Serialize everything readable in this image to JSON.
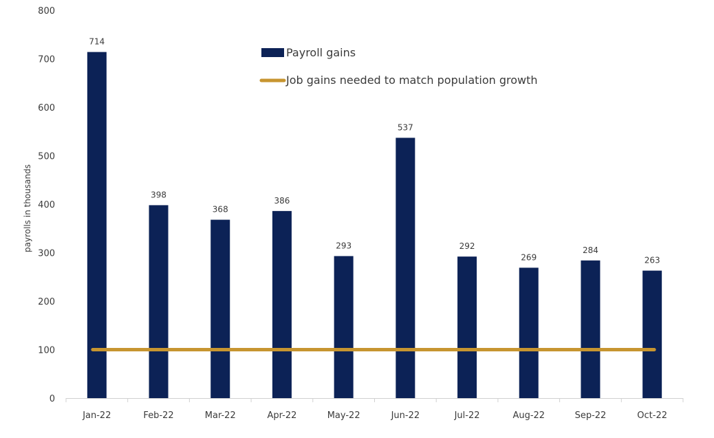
{
  "chart_data": {
    "type": "bar",
    "title": "",
    "xlabel": "",
    "ylabel": "payrolls in thousands",
    "ylim": [
      0,
      800
    ],
    "yticks": [
      0,
      100,
      200,
      300,
      400,
      500,
      600,
      700,
      800
    ],
    "grid": false,
    "legend_position": "top-center",
    "categories": [
      "Jan-22",
      "Feb-22",
      "Mar-22",
      "Apr-22",
      "May-22",
      "Jun-22",
      "Jul-22",
      "Aug-22",
      "Sep-22",
      "Oct-22"
    ],
    "series": [
      {
        "name": "Payroll gains",
        "type": "bar",
        "color": "#0c2256",
        "values": [
          714,
          398,
          368,
          386,
          293,
          537,
          292,
          269,
          284,
          263
        ]
      },
      {
        "name": "Job gains needed to match population growth",
        "type": "line",
        "color": "#c79530",
        "values": [
          100,
          100,
          100,
          100,
          100,
          100,
          100,
          100,
          100,
          100
        ]
      }
    ]
  }
}
